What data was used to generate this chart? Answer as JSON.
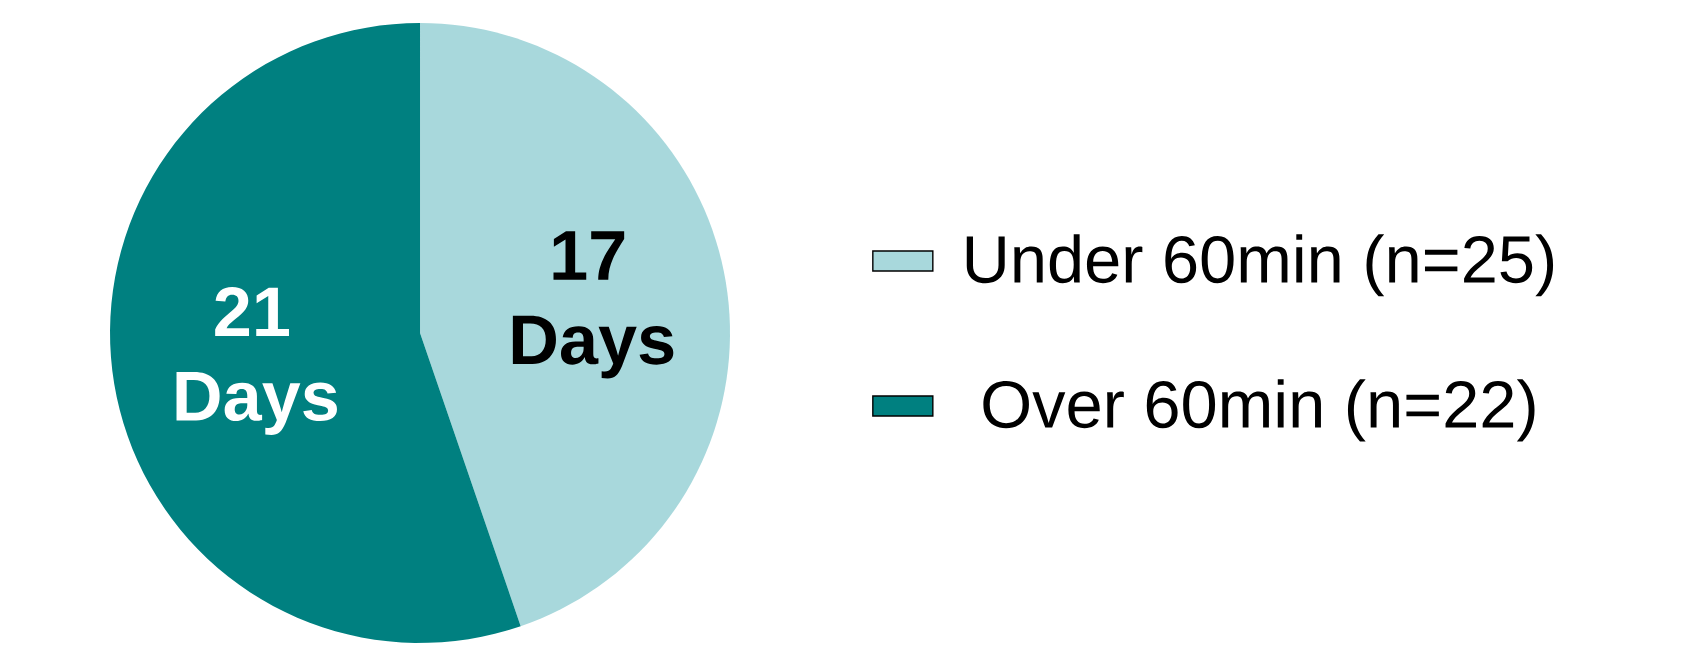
{
  "chart_data": {
    "type": "pie",
    "categories": [
      "Under 60min (n=25)",
      "Over 60min (n=22)"
    ],
    "values": [
      17,
      21
    ],
    "colors": [
      "#a8d8dc",
      "#008080"
    ],
    "value_labels": [
      "17 Days",
      "21 Days"
    ],
    "legend": "right"
  }
}
